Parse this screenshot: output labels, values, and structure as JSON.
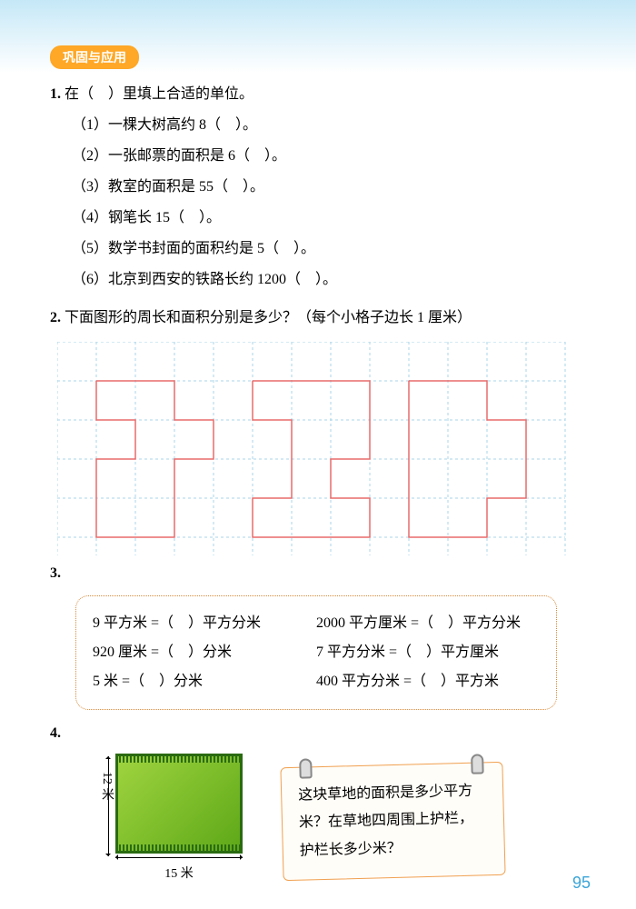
{
  "badge": "巩固与应用",
  "q1": {
    "num": "1.",
    "text": "在（　）里填上合适的单位。",
    "items": [
      "（1）一棵大树高约 8（　）。",
      "（2）一张邮票的面积是 6（　）。",
      "（3）教室的面积是 55（　）。",
      "（4）钢笔长 15（　）。",
      "（5）数学书封面的面积约是 5（　）。",
      "（6）北京到西安的铁路长约 1200（　）。"
    ]
  },
  "q2": {
    "num": "2.",
    "text": "下面图形的周长和面积分别是多少？（每个小格子边长 1 厘米）"
  },
  "grid": {
    "cols": 13,
    "rows": 6,
    "cell": 43,
    "grid_color": "#a8d4e8",
    "shape_color": "#e86b6b",
    "shapes": [
      [
        [
          1,
          1
        ],
        [
          3,
          1
        ],
        [
          3,
          2
        ],
        [
          4,
          2
        ],
        [
          4,
          3
        ],
        [
          3,
          3
        ],
        [
          3,
          5
        ],
        [
          1,
          5
        ],
        [
          1,
          3
        ],
        [
          2,
          3
        ],
        [
          2,
          2
        ],
        [
          1,
          2
        ],
        [
          1,
          1
        ]
      ],
      [
        [
          5,
          1
        ],
        [
          8,
          1
        ],
        [
          8,
          3
        ],
        [
          7,
          3
        ],
        [
          7,
          4
        ],
        [
          8,
          4
        ],
        [
          8,
          5
        ],
        [
          5,
          5
        ],
        [
          5,
          4
        ],
        [
          6,
          4
        ],
        [
          6,
          2
        ],
        [
          5,
          2
        ],
        [
          5,
          1
        ]
      ],
      [
        [
          9,
          1
        ],
        [
          11,
          1
        ],
        [
          11,
          2
        ],
        [
          12,
          2
        ],
        [
          12,
          4
        ],
        [
          11,
          4
        ],
        [
          11,
          5
        ],
        [
          9,
          5
        ],
        [
          9,
          1
        ]
      ]
    ]
  },
  "q3": {
    "num": "3.",
    "rows": [
      {
        "left": "9 平方米 =（　）平方分米",
        "right": "2000 平方厘米 =（　）平方分米"
      },
      {
        "left": "920 厘米 =（　）分米",
        "right": "7 平方分米 =（　）平方厘米"
      },
      {
        "left": "5 米 =（　）分米",
        "right": "400 平方分米 =（　）平方米"
      }
    ]
  },
  "q4": {
    "num": "4.",
    "height_label": "12 米",
    "width_label": "15 米",
    "note": "这块草地的面积是多少平方米？在草地四周围上护栏，护栏长多少米？"
  },
  "page_number": "95"
}
